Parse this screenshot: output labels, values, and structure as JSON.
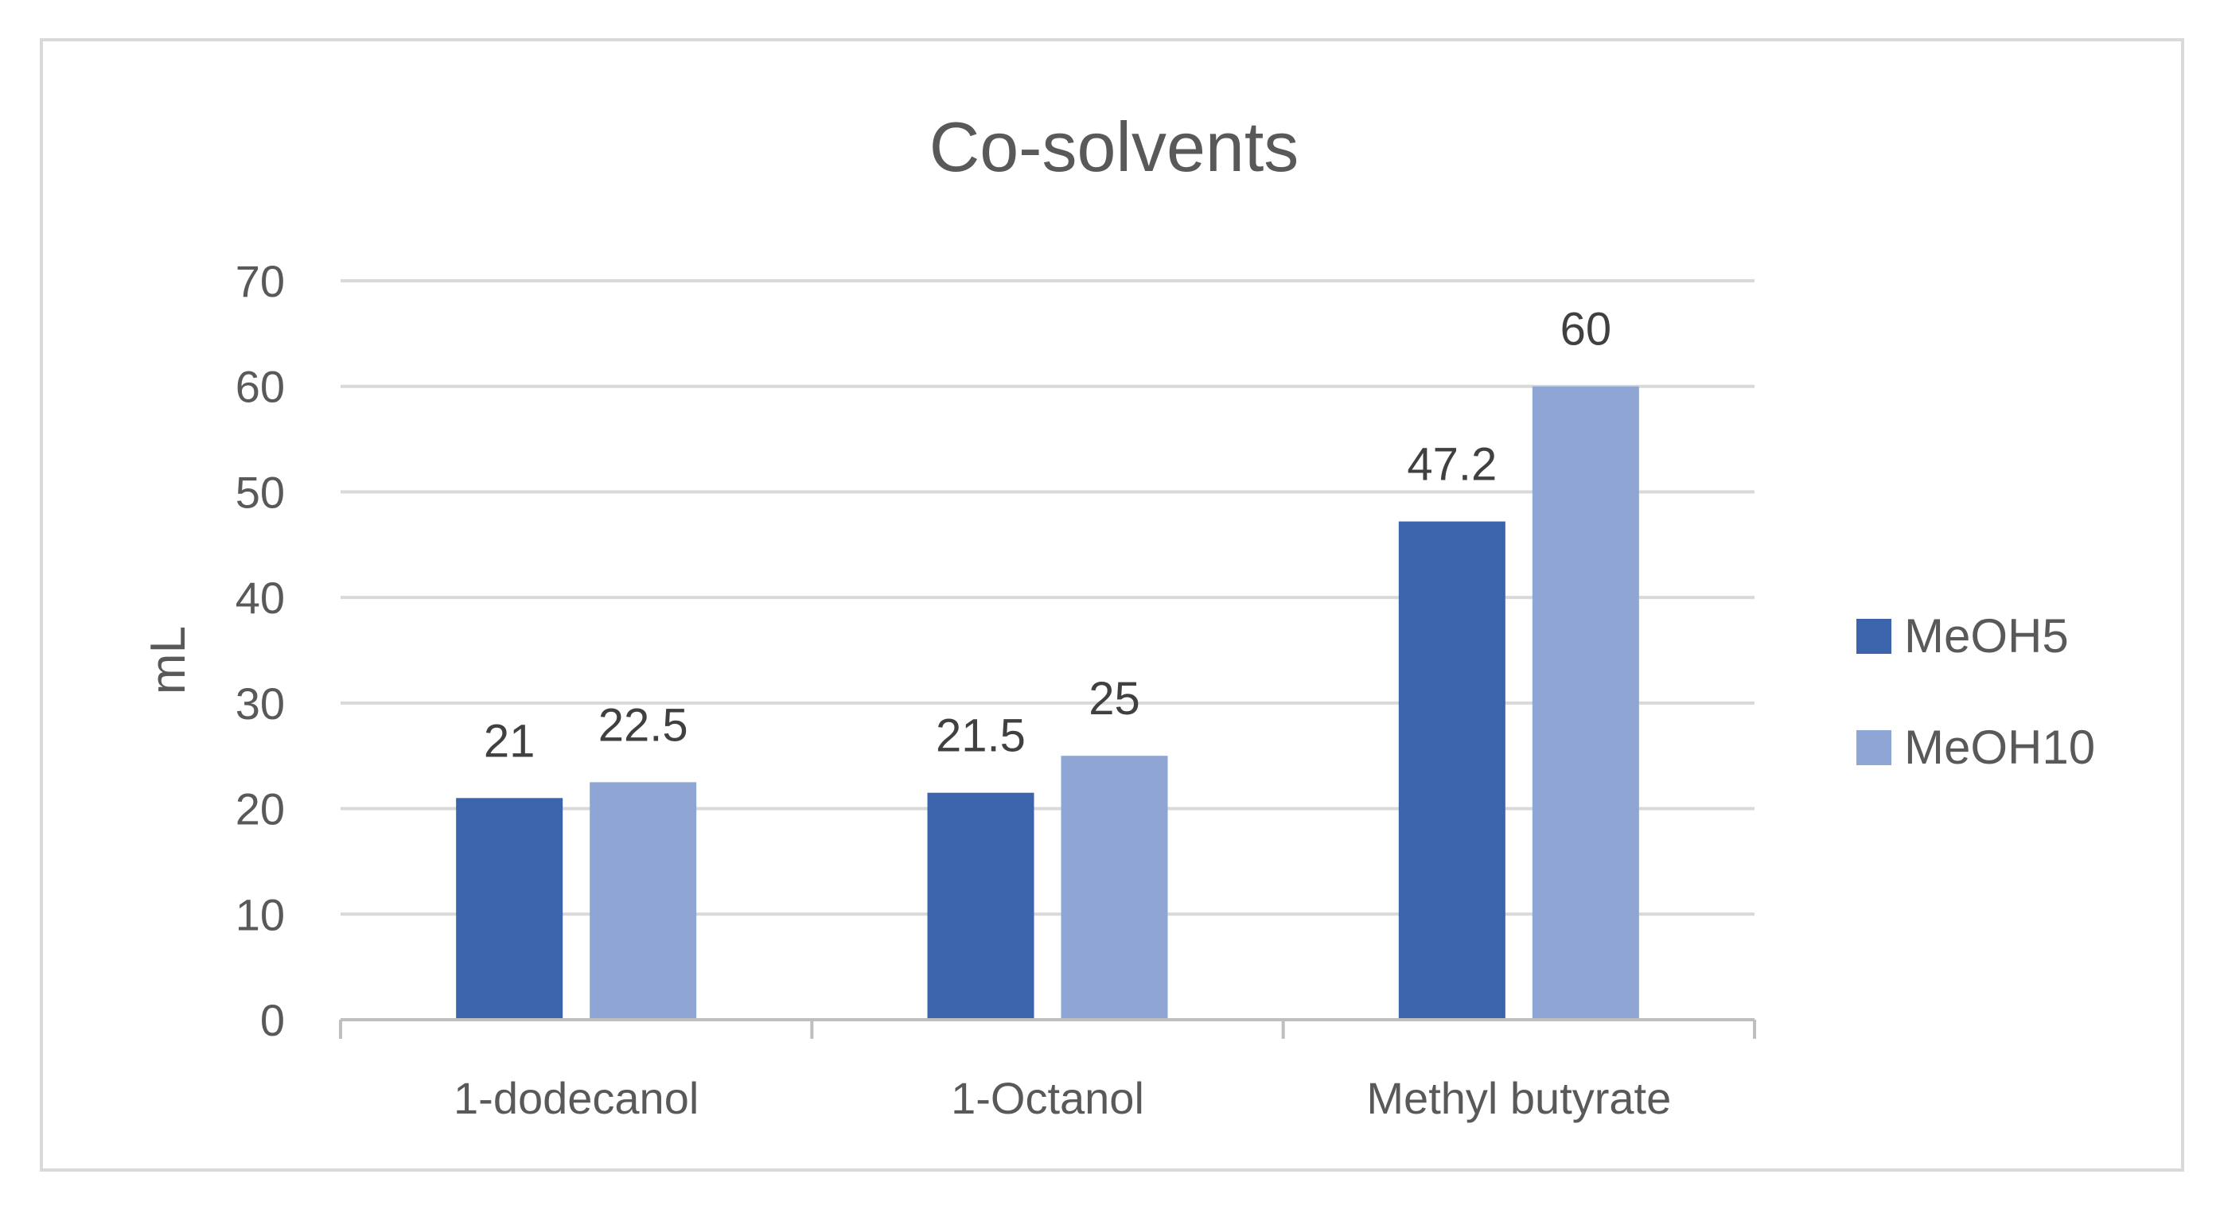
{
  "chart_data": {
    "type": "bar",
    "title": "Co-solvents",
    "xlabel": "",
    "ylabel": "mL",
    "categories": [
      "1-dodecanol",
      "1-Octanol",
      "Methyl butyrate"
    ],
    "series": [
      {
        "name": "MeOH5",
        "values": [
          21,
          21.5,
          47.2
        ],
        "labels": [
          "21",
          "21.5",
          "47.2"
        ],
        "color": "#3c64ac"
      },
      {
        "name": "MeOH10",
        "values": [
          22.5,
          25,
          60
        ],
        "labels": [
          "22.5",
          "25",
          "60"
        ],
        "color": "#8fa6d5"
      }
    ],
    "ylim": [
      0,
      70
    ],
    "yticks": [
      0,
      10,
      20,
      30,
      40,
      50,
      60,
      70
    ],
    "grid": true,
    "legend": "right"
  },
  "colors": {
    "gridline": "#d9d9d9",
    "axis": "#bfbfbf",
    "text": "#595959"
  }
}
